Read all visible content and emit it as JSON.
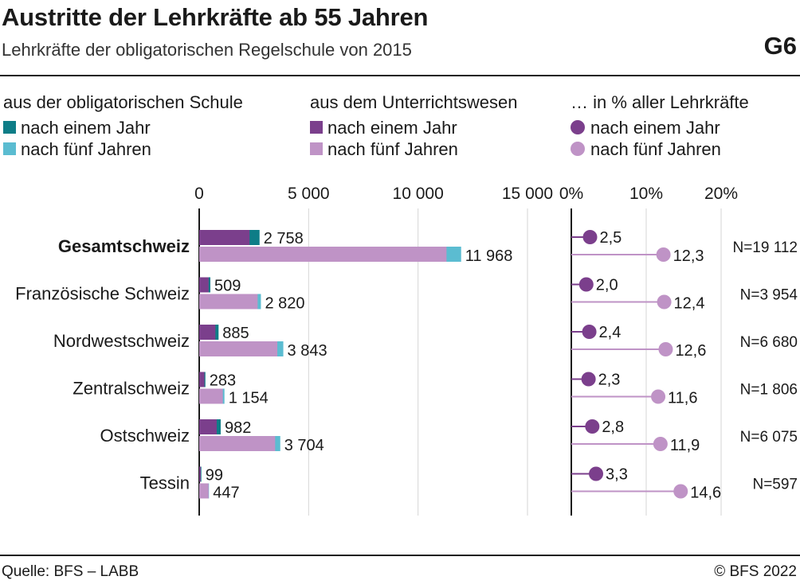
{
  "header": {
    "title": "Austritte der Lehrkräfte ab 55 Jahren",
    "subtitle": "Lehrkräfte der obligatorischen Regelschule von 2015",
    "code": "G6"
  },
  "legend": {
    "groups": [
      {
        "heading": "aus der obligatorischen Schule",
        "items": [
          {
            "label": "nach einem Jahr",
            "color": "#0e7d87"
          },
          {
            "label": "nach fünf Jahren",
            "color": "#5bbcd1"
          }
        ]
      },
      {
        "heading": "aus dem Unterrichtswesen",
        "items": [
          {
            "label": "nach einem Jahr",
            "color": "#7b3f8c"
          },
          {
            "label": "nach fünf Jahren",
            "color": "#bf93c6"
          }
        ]
      },
      {
        "heading": "… in % aller Lehrkräfte",
        "items": [
          {
            "label": "nach einem Jahr",
            "color": "#7b3f8c"
          },
          {
            "label": "nach fünf Jahren",
            "color": "#bf93c6"
          }
        ]
      }
    ]
  },
  "chart_data": [
    {
      "type": "bar",
      "orientation": "horizontal",
      "stacked": true,
      "categories": [
        "Gesamtschweiz",
        "Französische Schweiz",
        "Nordwestschweiz",
        "Zentralschweiz",
        "Ostschweiz",
        "Tessin"
      ],
      "xlim": [
        0,
        15000
      ],
      "ticks": [
        "0",
        "5 000",
        "10 000",
        "15 000"
      ],
      "tick_values": [
        0,
        5000,
        10000,
        15000
      ],
      "grid": true,
      "series": [
        {
          "name": "nach einem Jahr",
          "unterricht": [
            2300,
            430,
            740,
            240,
            800,
            70
          ],
          "schule": [
            2758,
            509,
            885,
            283,
            982,
            99
          ],
          "labels": [
            "2 758",
            "509",
            "885",
            "283",
            "982",
            "99"
          ]
        },
        {
          "name": "nach fünf Jahren",
          "unterricht": [
            11300,
            2670,
            3570,
            1080,
            3470,
            430
          ],
          "schule": [
            11968,
            2820,
            3843,
            1154,
            3704,
            447
          ],
          "labels": [
            "11 968",
            "2 820",
            "3 843",
            "1 154",
            "3 704",
            "447"
          ]
        }
      ]
    },
    {
      "type": "scatter",
      "style": "lollipop",
      "categories": [
        "Gesamtschweiz",
        "Französische Schweiz",
        "Nordwestschweiz",
        "Zentralschweiz",
        "Ostschweiz",
        "Tessin"
      ],
      "xlim": [
        0,
        20
      ],
      "ticks": [
        "0%",
        "10%",
        "20%"
      ],
      "tick_values": [
        0,
        10,
        20
      ],
      "grid": true,
      "series": [
        {
          "name": "nach einem Jahr",
          "values": [
            2.5,
            2.0,
            2.4,
            2.3,
            2.8,
            3.3
          ],
          "labels": [
            "2,5",
            "2,0",
            "2,4",
            "2,3",
            "2,8",
            "3,3"
          ]
        },
        {
          "name": "nach fünf Jahren",
          "values": [
            12.3,
            12.4,
            12.6,
            11.6,
            11.9,
            14.6
          ],
          "labels": [
            "12,3",
            "12,4",
            "12,6",
            "11,6",
            "11,9",
            "14,6"
          ]
        }
      ],
      "n_labels": [
        "N=19 112",
        "N=3 954",
        "N=6 680",
        "N=1 806",
        "N=6 075",
        "N=597"
      ]
    }
  ],
  "footer": {
    "source": "Quelle: BFS – LABB",
    "copyright": "© BFS 2022"
  }
}
